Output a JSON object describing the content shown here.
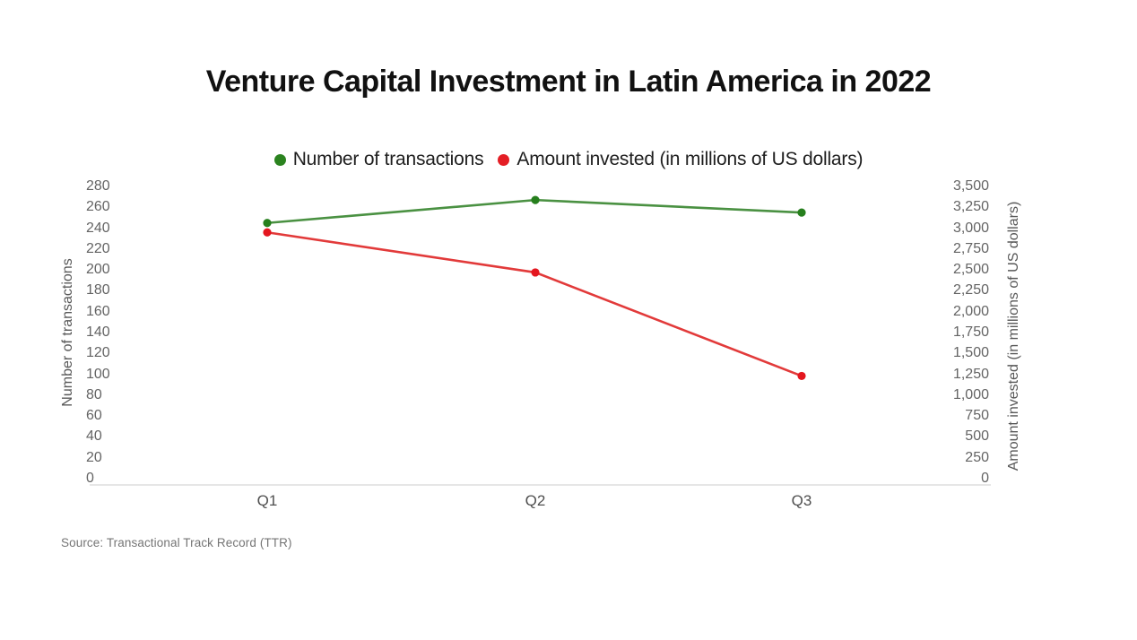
{
  "title": "Venture Capital Investment in Latin America in 2022",
  "source": "Source: Transactional Track Record (TTR)",
  "legend": {
    "items": [
      {
        "label": "Number of transactions",
        "color": "#2b831f"
      },
      {
        "label": "Amount invested (in millions of US dollars)",
        "color": "#e41e25"
      }
    ]
  },
  "chart_data": {
    "type": "line",
    "categories": [
      "Q1",
      "Q2",
      "Q3"
    ],
    "series": [
      {
        "name": "Number of transactions",
        "axis": "left",
        "line_color": "#4a9142",
        "marker_color": "#267f1d",
        "values": [
          245,
          267,
          255
        ]
      },
      {
        "name": "Amount invested (in millions of US dollars)",
        "axis": "right",
        "line_color": "#e23a3a",
        "marker_color": "#e4161f",
        "values": [
          2950,
          2470,
          1230
        ]
      }
    ],
    "left_axis": {
      "label": "Number of transactions",
      "min": 0,
      "max": 280,
      "step": 20
    },
    "right_axis": {
      "label": "Amount invested (in millions of US dollars)",
      "min": 0,
      "max": 3500,
      "step": 250
    },
    "grid": false,
    "legend_position": "top",
    "marker": "dot"
  }
}
